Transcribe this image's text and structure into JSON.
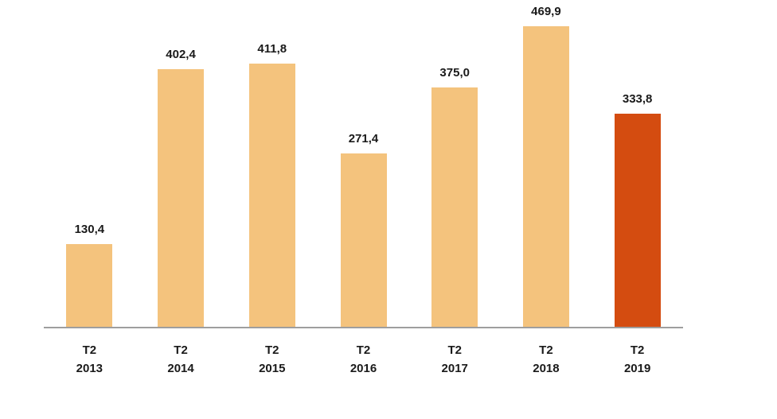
{
  "chart_data": {
    "type": "bar",
    "categories": [
      "T2 2013",
      "T2 2014",
      "T2 2015",
      "T2 2016",
      "T2 2017",
      "T2 2018",
      "T2 2019"
    ],
    "values": [
      130.4,
      402.4,
      411.8,
      271.4,
      375.0,
      469.9,
      333.8
    ],
    "data_labels": [
      "130,4",
      "402,4",
      "411,8",
      "271,4",
      "375,0",
      "469,9",
      "333,8"
    ],
    "title": "",
    "xlabel": "",
    "ylabel": "",
    "ylim": [
      0,
      470
    ],
    "grid": false,
    "legend": false,
    "bar_color": "#F4C37D",
    "highlight_color": "#D44C10",
    "highlight_index": 6,
    "axis_line_color": "#9E9E9E",
    "label_color": "#1A1A1A",
    "background_color": "#FFFFFF"
  }
}
